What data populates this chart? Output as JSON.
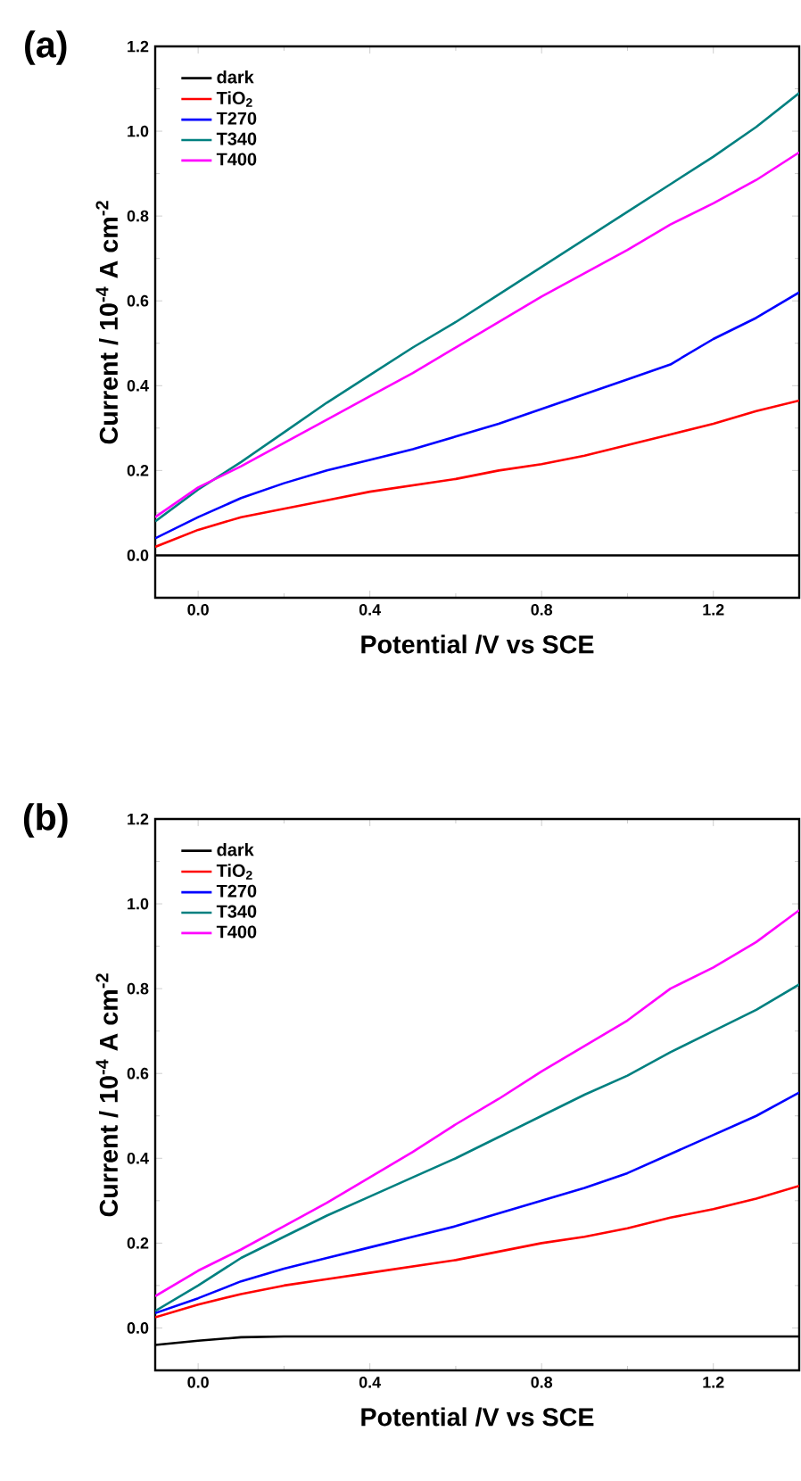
{
  "chart_data": [
    {
      "type": "line",
      "title": "(a)",
      "xlabel": "Potential /V vs SCE",
      "ylabel": "Current / 10$^{-4}$ A cm$^{-2}$",
      "x": [
        -0.1,
        0.0,
        0.1,
        0.2,
        0.3,
        0.4,
        0.5,
        0.6,
        0.7,
        0.8,
        0.9,
        1.0,
        1.1,
        1.2,
        1.3,
        1.4
      ],
      "xlim": [
        -0.1,
        1.4
      ],
      "ylim": [
        -0.1,
        1.2
      ],
      "xticks": [
        {
          "value": 0,
          "label": "0.0"
        },
        {
          "value": 0.4,
          "label": "0.4"
        },
        {
          "value": 0.8,
          "label": "0.8"
        },
        {
          "value": 1.2,
          "label": "1.2"
        }
      ],
      "yticks": [
        {
          "value": 0,
          "label": "0.0"
        },
        {
          "value": 0.2,
          "label": "0.2"
        },
        {
          "value": 0.4,
          "label": "0.4"
        },
        {
          "value": 0.6,
          "label": "0.6"
        },
        {
          "value": 0.8,
          "label": "0.8"
        },
        {
          "value": 1.0,
          "label": "1.0"
        },
        {
          "value": 1.2,
          "label": "1.2"
        }
      ],
      "legend": "top left",
      "series": [
        {
          "name": "dark",
          "color": "#000000",
          "values": [
            0,
            0,
            0,
            0,
            0,
            0,
            0,
            0,
            0,
            0,
            0,
            0,
            0,
            0,
            0,
            0
          ]
        },
        {
          "name": "TiO$_{2}$",
          "color": "#ff0000",
          "values": [
            0.02,
            0.06,
            0.09,
            0.11,
            0.13,
            0.15,
            0.165,
            0.18,
            0.2,
            0.215,
            0.235,
            0.26,
            0.285,
            0.31,
            0.34,
            0.365
          ]
        },
        {
          "name": "T270",
          "color": "#0000ff",
          "values": [
            0.04,
            0.09,
            0.135,
            0.17,
            0.2,
            0.225,
            0.25,
            0.28,
            0.31,
            0.345,
            0.38,
            0.415,
            0.45,
            0.51,
            0.56,
            0.62
          ]
        },
        {
          "name": "T340",
          "color": "#008080",
          "values": [
            0.08,
            0.155,
            0.22,
            0.29,
            0.36,
            0.425,
            0.49,
            0.55,
            0.615,
            0.68,
            0.745,
            0.81,
            0.875,
            0.94,
            1.01,
            1.09
          ]
        },
        {
          "name": "T400",
          "color": "#ff00ff",
          "values": [
            0.09,
            0.16,
            0.21,
            0.265,
            0.32,
            0.375,
            0.43,
            0.49,
            0.55,
            0.61,
            0.665,
            0.72,
            0.78,
            0.83,
            0.885,
            0.95
          ]
        }
      ]
    },
    {
      "type": "line",
      "title": "(b)",
      "xlabel": "Potential /V vs SCE",
      "ylabel": "Current / 10$^{-4}$ A cm$^{-2}$",
      "x": [
        -0.1,
        0.0,
        0.1,
        0.2,
        0.3,
        0.4,
        0.5,
        0.6,
        0.7,
        0.8,
        0.9,
        1.0,
        1.1,
        1.2,
        1.3,
        1.4
      ],
      "xlim": [
        -0.1,
        1.4
      ],
      "ylim": [
        -0.1,
        1.2
      ],
      "xticks": [
        {
          "value": 0,
          "label": "0.0"
        },
        {
          "value": 0.4,
          "label": "0.4"
        },
        {
          "value": 0.8,
          "label": "0.8"
        },
        {
          "value": 1.2,
          "label": "1.2"
        }
      ],
      "yticks": [
        {
          "value": 0,
          "label": "0.0"
        },
        {
          "value": 0.2,
          "label": "0.2"
        },
        {
          "value": 0.4,
          "label": "0.4"
        },
        {
          "value": 0.6,
          "label": "0.6"
        },
        {
          "value": 0.8,
          "label": "0.8"
        },
        {
          "value": 1.0,
          "label": "1.0"
        },
        {
          "value": 1.2,
          "label": "1.2"
        }
      ],
      "legend": "top left",
      "series": [
        {
          "name": "dark",
          "color": "#000000",
          "values": [
            -0.04,
            -0.03,
            -0.022,
            -0.02,
            -0.02,
            -0.02,
            -0.02,
            -0.02,
            -0.02,
            -0.02,
            -0.02,
            -0.02,
            -0.02,
            -0.02,
            -0.02,
            -0.02
          ]
        },
        {
          "name": "TiO$_{2}$",
          "color": "#ff0000",
          "values": [
            0.025,
            0.055,
            0.08,
            0.1,
            0.115,
            0.13,
            0.145,
            0.16,
            0.18,
            0.2,
            0.215,
            0.235,
            0.26,
            0.28,
            0.305,
            0.335
          ]
        },
        {
          "name": "T270",
          "color": "#0000ff",
          "values": [
            0.035,
            0.07,
            0.11,
            0.14,
            0.165,
            0.19,
            0.215,
            0.24,
            0.27,
            0.3,
            0.33,
            0.365,
            0.41,
            0.455,
            0.5,
            0.555
          ]
        },
        {
          "name": "T340",
          "color": "#008080",
          "values": [
            0.04,
            0.1,
            0.165,
            0.215,
            0.265,
            0.31,
            0.355,
            0.4,
            0.45,
            0.5,
            0.55,
            0.595,
            0.65,
            0.7,
            0.75,
            0.81
          ]
        },
        {
          "name": "T400",
          "color": "#ff00ff",
          "values": [
            0.075,
            0.135,
            0.185,
            0.24,
            0.295,
            0.355,
            0.415,
            0.48,
            0.54,
            0.605,
            0.665,
            0.725,
            0.8,
            0.85,
            0.91,
            0.985
          ]
        }
      ]
    }
  ]
}
